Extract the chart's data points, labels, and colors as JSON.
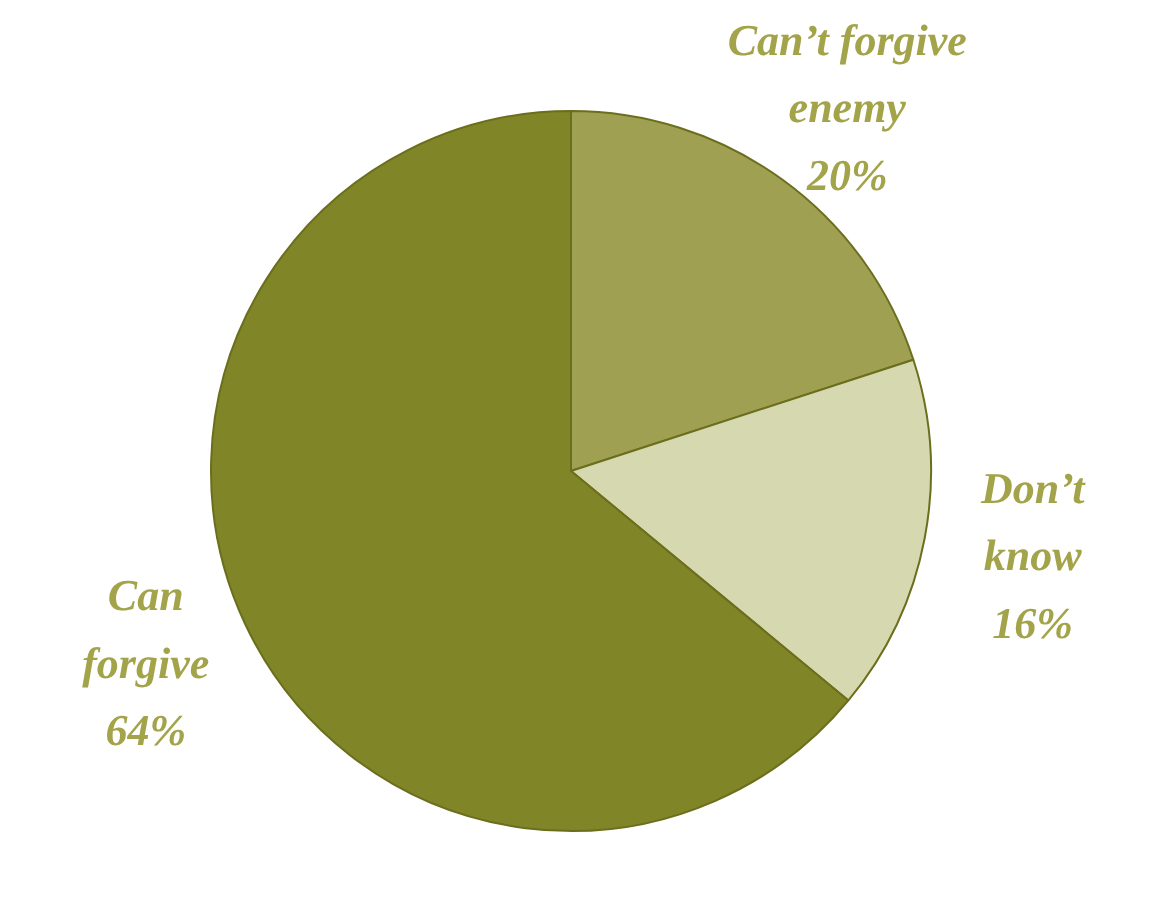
{
  "chart_data": {
    "type": "pie",
    "categories": [
      "Can’t forgive enemy",
      "Don’t know",
      "Can forgive"
    ],
    "values": [
      20,
      16,
      64
    ],
    "colors": [
      "#a0a052",
      "#d6d8b0",
      "#808528"
    ],
    "value_labels": [
      "20%",
      "16%",
      "64%"
    ]
  }
}
